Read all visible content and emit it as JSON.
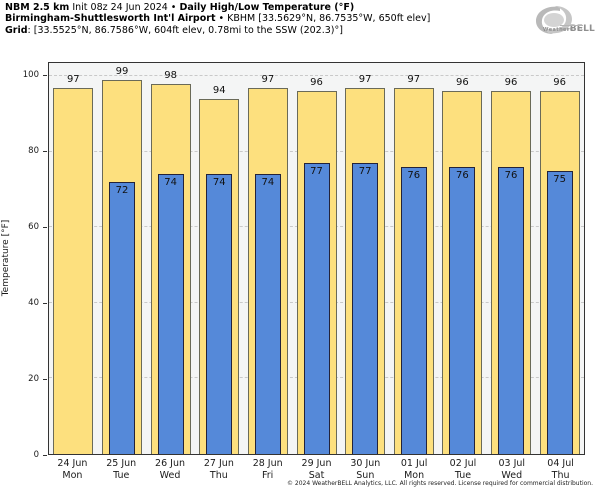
{
  "header": {
    "line1": {
      "product": "NBM 2.5 km",
      "init": " Init 08z 24 Jun 2024 • ",
      "title": "Daily High/Low Temperature (°F)"
    },
    "line2": {
      "station": "Birmingham-Shuttlesworth Int'l Airport",
      "details": " • KBHM [33.5629°N, 86.7535°W, 650ft elev]"
    },
    "line3": {
      "label": "Grid",
      "details": ": [33.5525°N, 86.7586°W, 604ft elev, 0.78mi to the SSW (202.3)°]"
    }
  },
  "logo": {
    "brand_prefix": "Weather",
    "brand_suffix": "BELL",
    "tagline": "Analytics LLC"
  },
  "chart_data": {
    "type": "bar",
    "title": "NBM 2.5 km Daily High/Low Temperature (°F) — Birmingham-Shuttlesworth Int'l Airport (KBHM)",
    "xlabel": "",
    "ylabel": "Temperature [°F]",
    "ylim": [
      0,
      100
    ],
    "yticks": [
      0,
      20,
      40,
      60,
      80,
      100
    ],
    "grid": "dashed horizontal",
    "legend": "none",
    "categories": [
      "24 Jun",
      "25 Jun",
      "26 Jun",
      "27 Jun",
      "28 Jun",
      "29 Jun",
      "30 Jun",
      "01 Jul",
      "02 Jul",
      "03 Jul",
      "04 Jul"
    ],
    "weekdays": [
      "Mon",
      "Tue",
      "Wed",
      "Thu",
      "Fri",
      "Sat",
      "Sun",
      "Mon",
      "Tue",
      "Wed",
      "Thu"
    ],
    "series": [
      {
        "name": "Daily High",
        "values": [
          97,
          99,
          98,
          94,
          97,
          96,
          97,
          97,
          96,
          96,
          96
        ]
      },
      {
        "name": "Daily Low",
        "values": [
          null,
          72,
          74,
          74,
          74,
          77,
          77,
          76,
          76,
          76,
          75
        ]
      }
    ],
    "colors": {
      "high_fill": "#FDE07E",
      "high_border": "#6a6a58",
      "low_fill": "#5589D9",
      "low_border": "#23233a",
      "plot_bg": "#f4f5f5",
      "gridline": "#c9c9c9",
      "frame": "#333333"
    }
  },
  "footer": {
    "copyright": "© 2024 WeatherBELL Analytics, LLC. All rights reserved. License required for commercial distribution."
  }
}
